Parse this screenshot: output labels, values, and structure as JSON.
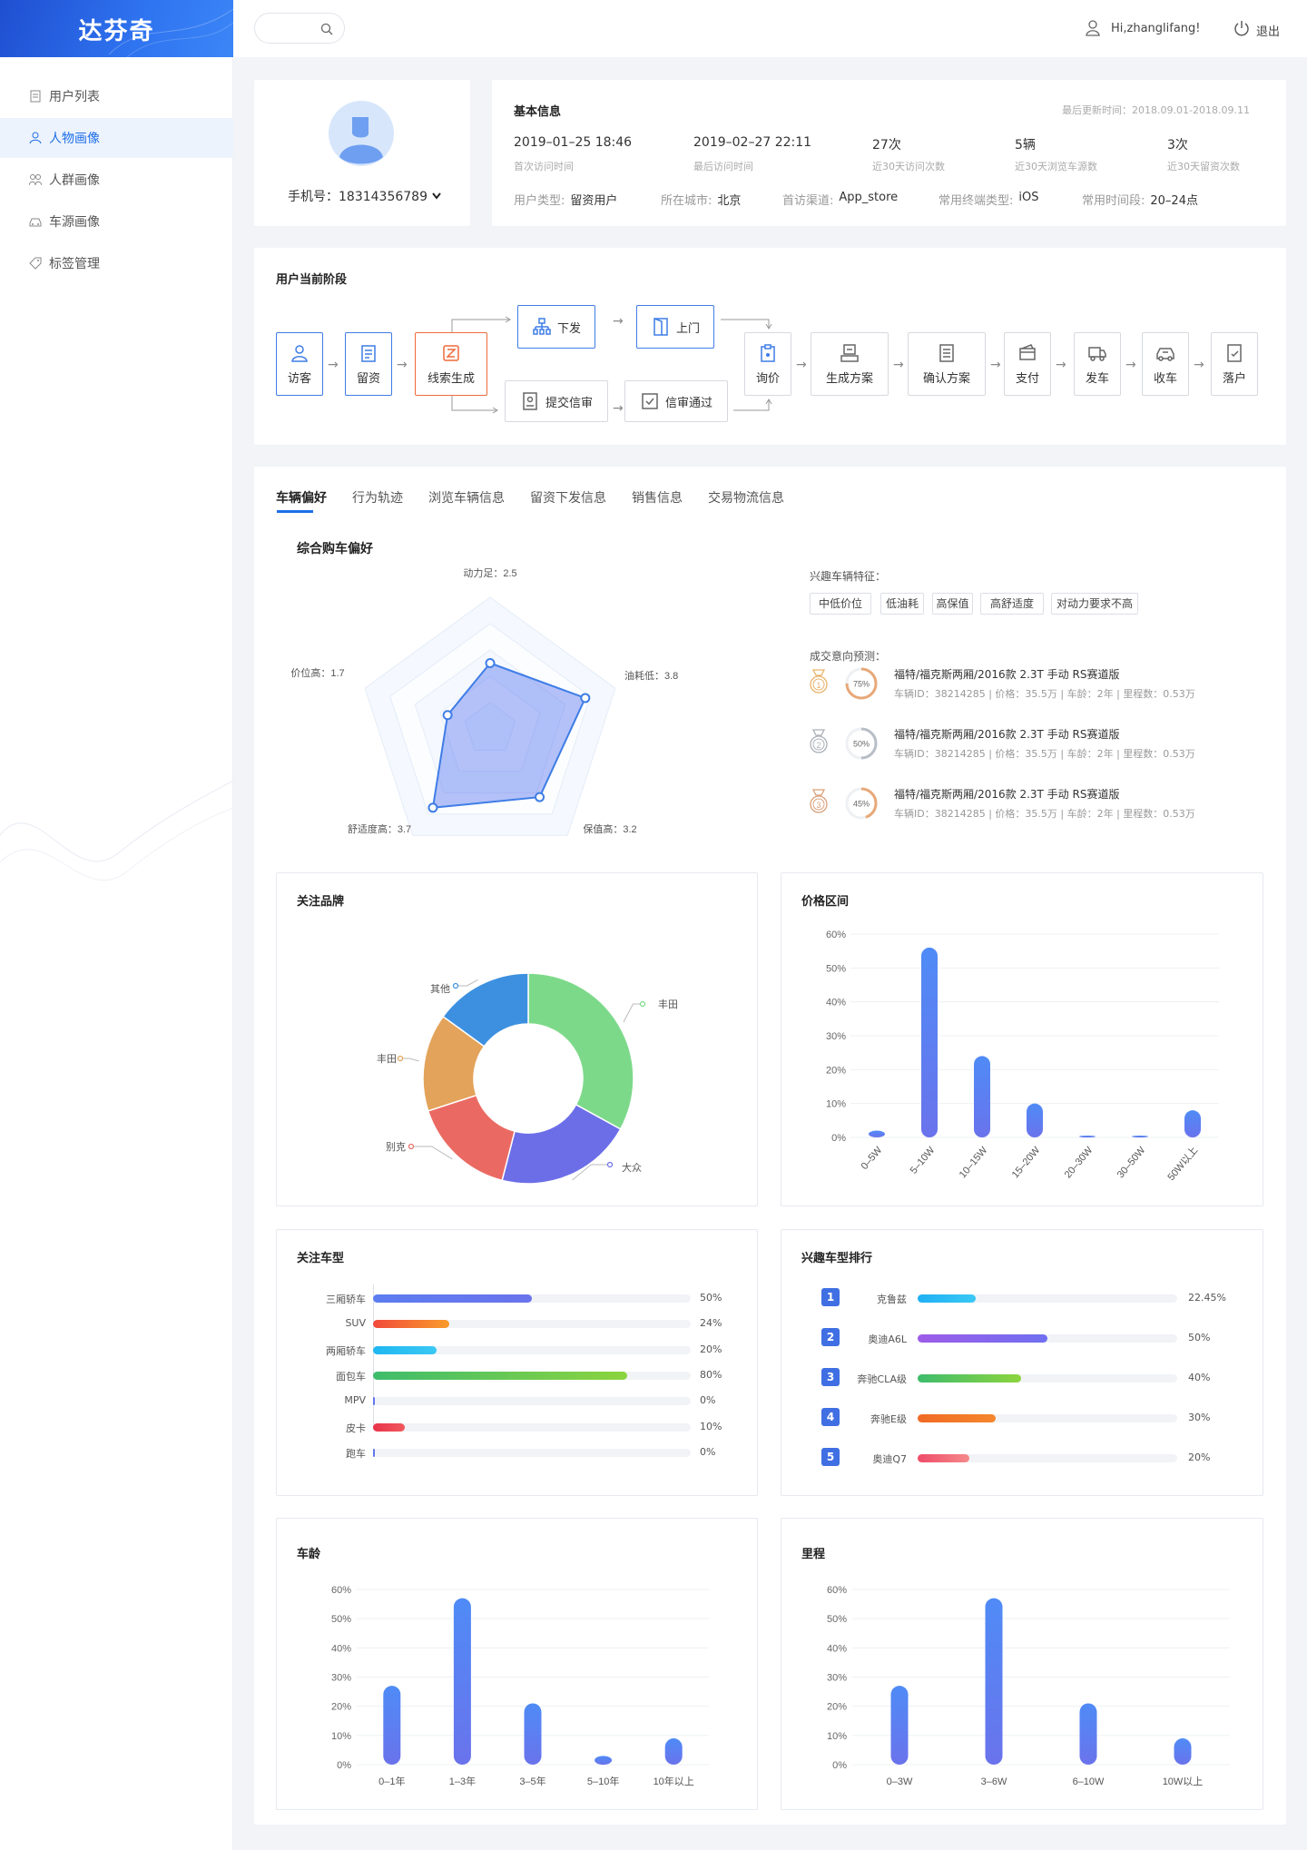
{
  "brand": "达芬奇",
  "nav": [
    {
      "label": "用户列表",
      "icon": "list-icon"
    },
    {
      "label": "人物画像",
      "icon": "person-icon"
    },
    {
      "label": "人群画像",
      "icon": "group-icon"
    },
    {
      "label": "车源画像",
      "icon": "car-icon"
    },
    {
      "label": "标签管理",
      "icon": "tag-icon"
    }
  ],
  "header": {
    "greeting": "Hi,zhanglifang!",
    "logout": "退出"
  },
  "profile": {
    "phone": "手机号：18314356789"
  },
  "basic": {
    "title": "基本信息",
    "updated": "最后更新时间：2018.09.01-2018.09.11",
    "stats": [
      {
        "value": "2019–01–25 18:46",
        "label": "首次访问时间"
      },
      {
        "value": "2019–02–27 22:11",
        "label": "最后访问时间"
      },
      {
        "value": "27次",
        "label": "近30天访问次数"
      },
      {
        "value": "5辆",
        "label": "近30天浏览车源数"
      },
      {
        "value": "3次",
        "label": "近30天留资次数"
      }
    ],
    "attrs": [
      {
        "label": "用户类型:",
        "value": "留资用户"
      },
      {
        "label": "所在城市:",
        "value": "北京"
      },
      {
        "label": "首访渠道:",
        "value": "App_store"
      },
      {
        "label": "常用终端类型:",
        "value": "iOS"
      },
      {
        "label": "常用时间段:",
        "value": "20–24点"
      }
    ]
  },
  "stage": {
    "title": "用户当前阶段",
    "steps": [
      "访客",
      "留资",
      "线索生成",
      "下发",
      "上门",
      "提交信审",
      "信审通过",
      "询价",
      "生成方案",
      "确认方案",
      "支付",
      "发车",
      "收车",
      "落户"
    ]
  },
  "tabs": [
    "车辆偏好",
    "行为轨迹",
    "浏览车辆信息",
    "留资下发信息",
    "销售信息",
    "交易物流信息"
  ],
  "radar": {
    "title": "综合购车偏好",
    "labels": [
      "动力足：2.5",
      "油耗低：3.8",
      "保值高：3.2",
      "舒适度高：3.7",
      "价位高：1.7"
    ],
    "values": [
      2.5,
      3.8,
      3.2,
      3.7,
      1.7
    ],
    "max": 5
  },
  "interest": {
    "title": "兴趣车辆特征：",
    "tags": [
      "中低价位",
      "低油耗",
      "高保值",
      "高舒适度",
      "对动力要求不高"
    ],
    "pred_title": "成交意向预测：",
    "preds": [
      {
        "rank": "1",
        "pct": "75%",
        "value": 0.75,
        "name": "福特/福克斯两厢/2016款 2.3T 手动 RS赛道版",
        "info": "车辆ID：38214285 | 价格：35.5万 | 车龄：2年 | 里程数：0.53万"
      },
      {
        "rank": "2",
        "pct": "50%",
        "value": 0.5,
        "name": "福特/福克斯两厢/2016款 2.3T 手动 RS赛道版",
        "info": "车辆ID：38214285 | 价格：35.5万 | 车龄：2年 | 里程数：0.53万"
      },
      {
        "rank": "3",
        "pct": "45%",
        "value": 0.45,
        "name": "福特/福克斯两厢/2016款 2.3T 手动 RS赛道版",
        "info": "车辆ID：38214285 | 价格：35.5万 | 车龄：2年 | 里程数：0.53万"
      }
    ]
  },
  "chart_data": [
    {
      "type": "pie",
      "title": "关注品牌",
      "series": [
        {
          "name": "丰田",
          "value": 33,
          "color": "#7dd98a"
        },
        {
          "name": "大众",
          "value": 21,
          "color": "#6c6ee8"
        },
        {
          "name": "别克",
          "value": 16,
          "color": "#ea6a63"
        },
        {
          "name": "丰田",
          "value": 15,
          "color": "#e3a35a"
        },
        {
          "name": "其他",
          "value": 15,
          "color": "#3d90e0"
        }
      ]
    },
    {
      "type": "bar",
      "title": "价格区间",
      "categories": [
        "0–5W",
        "5–10W",
        "10–15W",
        "15–20W",
        "20–30W",
        "30–50W",
        "50W以上"
      ],
      "values": [
        2,
        56,
        24,
        10,
        0.3,
        0.5,
        8
      ],
      "yticks": [
        "0%",
        "10%",
        "20%",
        "30%",
        "40%",
        "50%",
        "60%"
      ],
      "ylim": [
        0,
        60
      ]
    },
    {
      "type": "bar",
      "title": "关注车型",
      "orientation": "horizontal",
      "categories": [
        "三厢轿车",
        "SUV",
        "两厢轿车",
        "面包车",
        "MPV",
        "皮卡",
        "跑车"
      ],
      "values": [
        50,
        24,
        20,
        80,
        0,
        10,
        0
      ],
      "labels": [
        "50%",
        "24%",
        "20%",
        "80%",
        "0%",
        "10%",
        "0%"
      ]
    },
    {
      "type": "bar",
      "title": "兴趣车型排行",
      "orientation": "horizontal",
      "categories": [
        "克鲁兹",
        "奥迪A6L",
        "奔驰CLA级",
        "奔驰E级",
        "奥迪Q7"
      ],
      "ranks": [
        "1",
        "2",
        "3",
        "4",
        "5"
      ],
      "values": [
        22.45,
        50,
        40,
        30,
        20
      ],
      "labels": [
        "22.45%",
        "50%",
        "40%",
        "30%",
        "20%"
      ]
    },
    {
      "type": "bar",
      "title": "车龄",
      "categories": [
        "0–1年",
        "1–3年",
        "3–5年",
        "5–10年",
        "10年以上"
      ],
      "values": [
        27,
        57,
        21,
        3,
        9
      ],
      "yticks": [
        "0%",
        "10%",
        "20%",
        "30%",
        "40%",
        "50%",
        "60%"
      ],
      "ylim": [
        0,
        60
      ]
    },
    {
      "type": "bar",
      "title": "里程",
      "categories": [
        "0–3W",
        "3–6W",
        "6–10W",
        "10W以上"
      ],
      "values": [
        27,
        57,
        21,
        9
      ],
      "yticks": [
        "0%",
        "10%",
        "20%",
        "30%",
        "40%",
        "50%",
        "60%"
      ],
      "ylim": [
        0,
        60
      ]
    }
  ]
}
